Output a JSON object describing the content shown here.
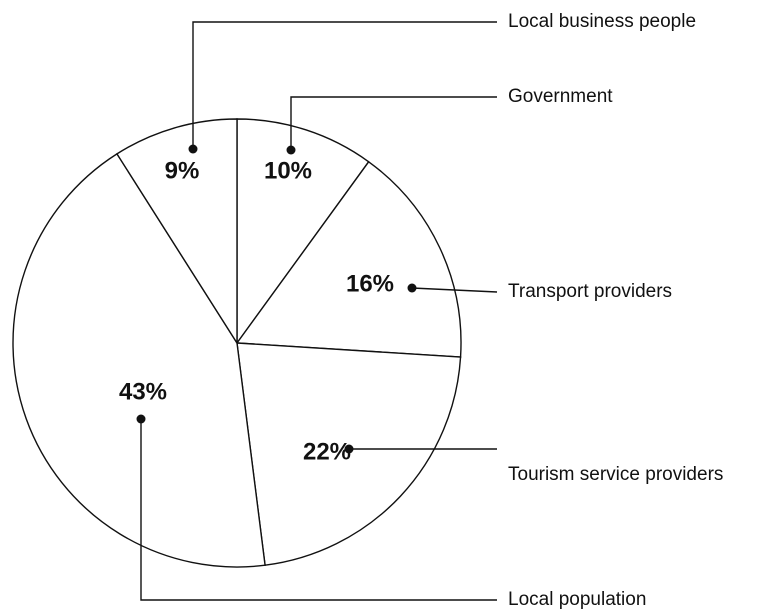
{
  "chart_data": {
    "type": "pie",
    "start_angle_deg": 0,
    "direction": "clockwise",
    "slices": [
      {
        "label": "Government",
        "value": 10,
        "value_label": "10%"
      },
      {
        "label": "Transport providers",
        "value": 16,
        "value_label": "16%"
      },
      {
        "label": "Tourism service providers",
        "value": 22,
        "value_label": "22%"
      },
      {
        "label": "Local population",
        "value": 43,
        "value_label": "43%"
      },
      {
        "label": "Local business people",
        "value": 9,
        "value_label": "9%"
      }
    ]
  },
  "colors": {
    "fill": "#ffffff",
    "stroke": "#111111"
  }
}
